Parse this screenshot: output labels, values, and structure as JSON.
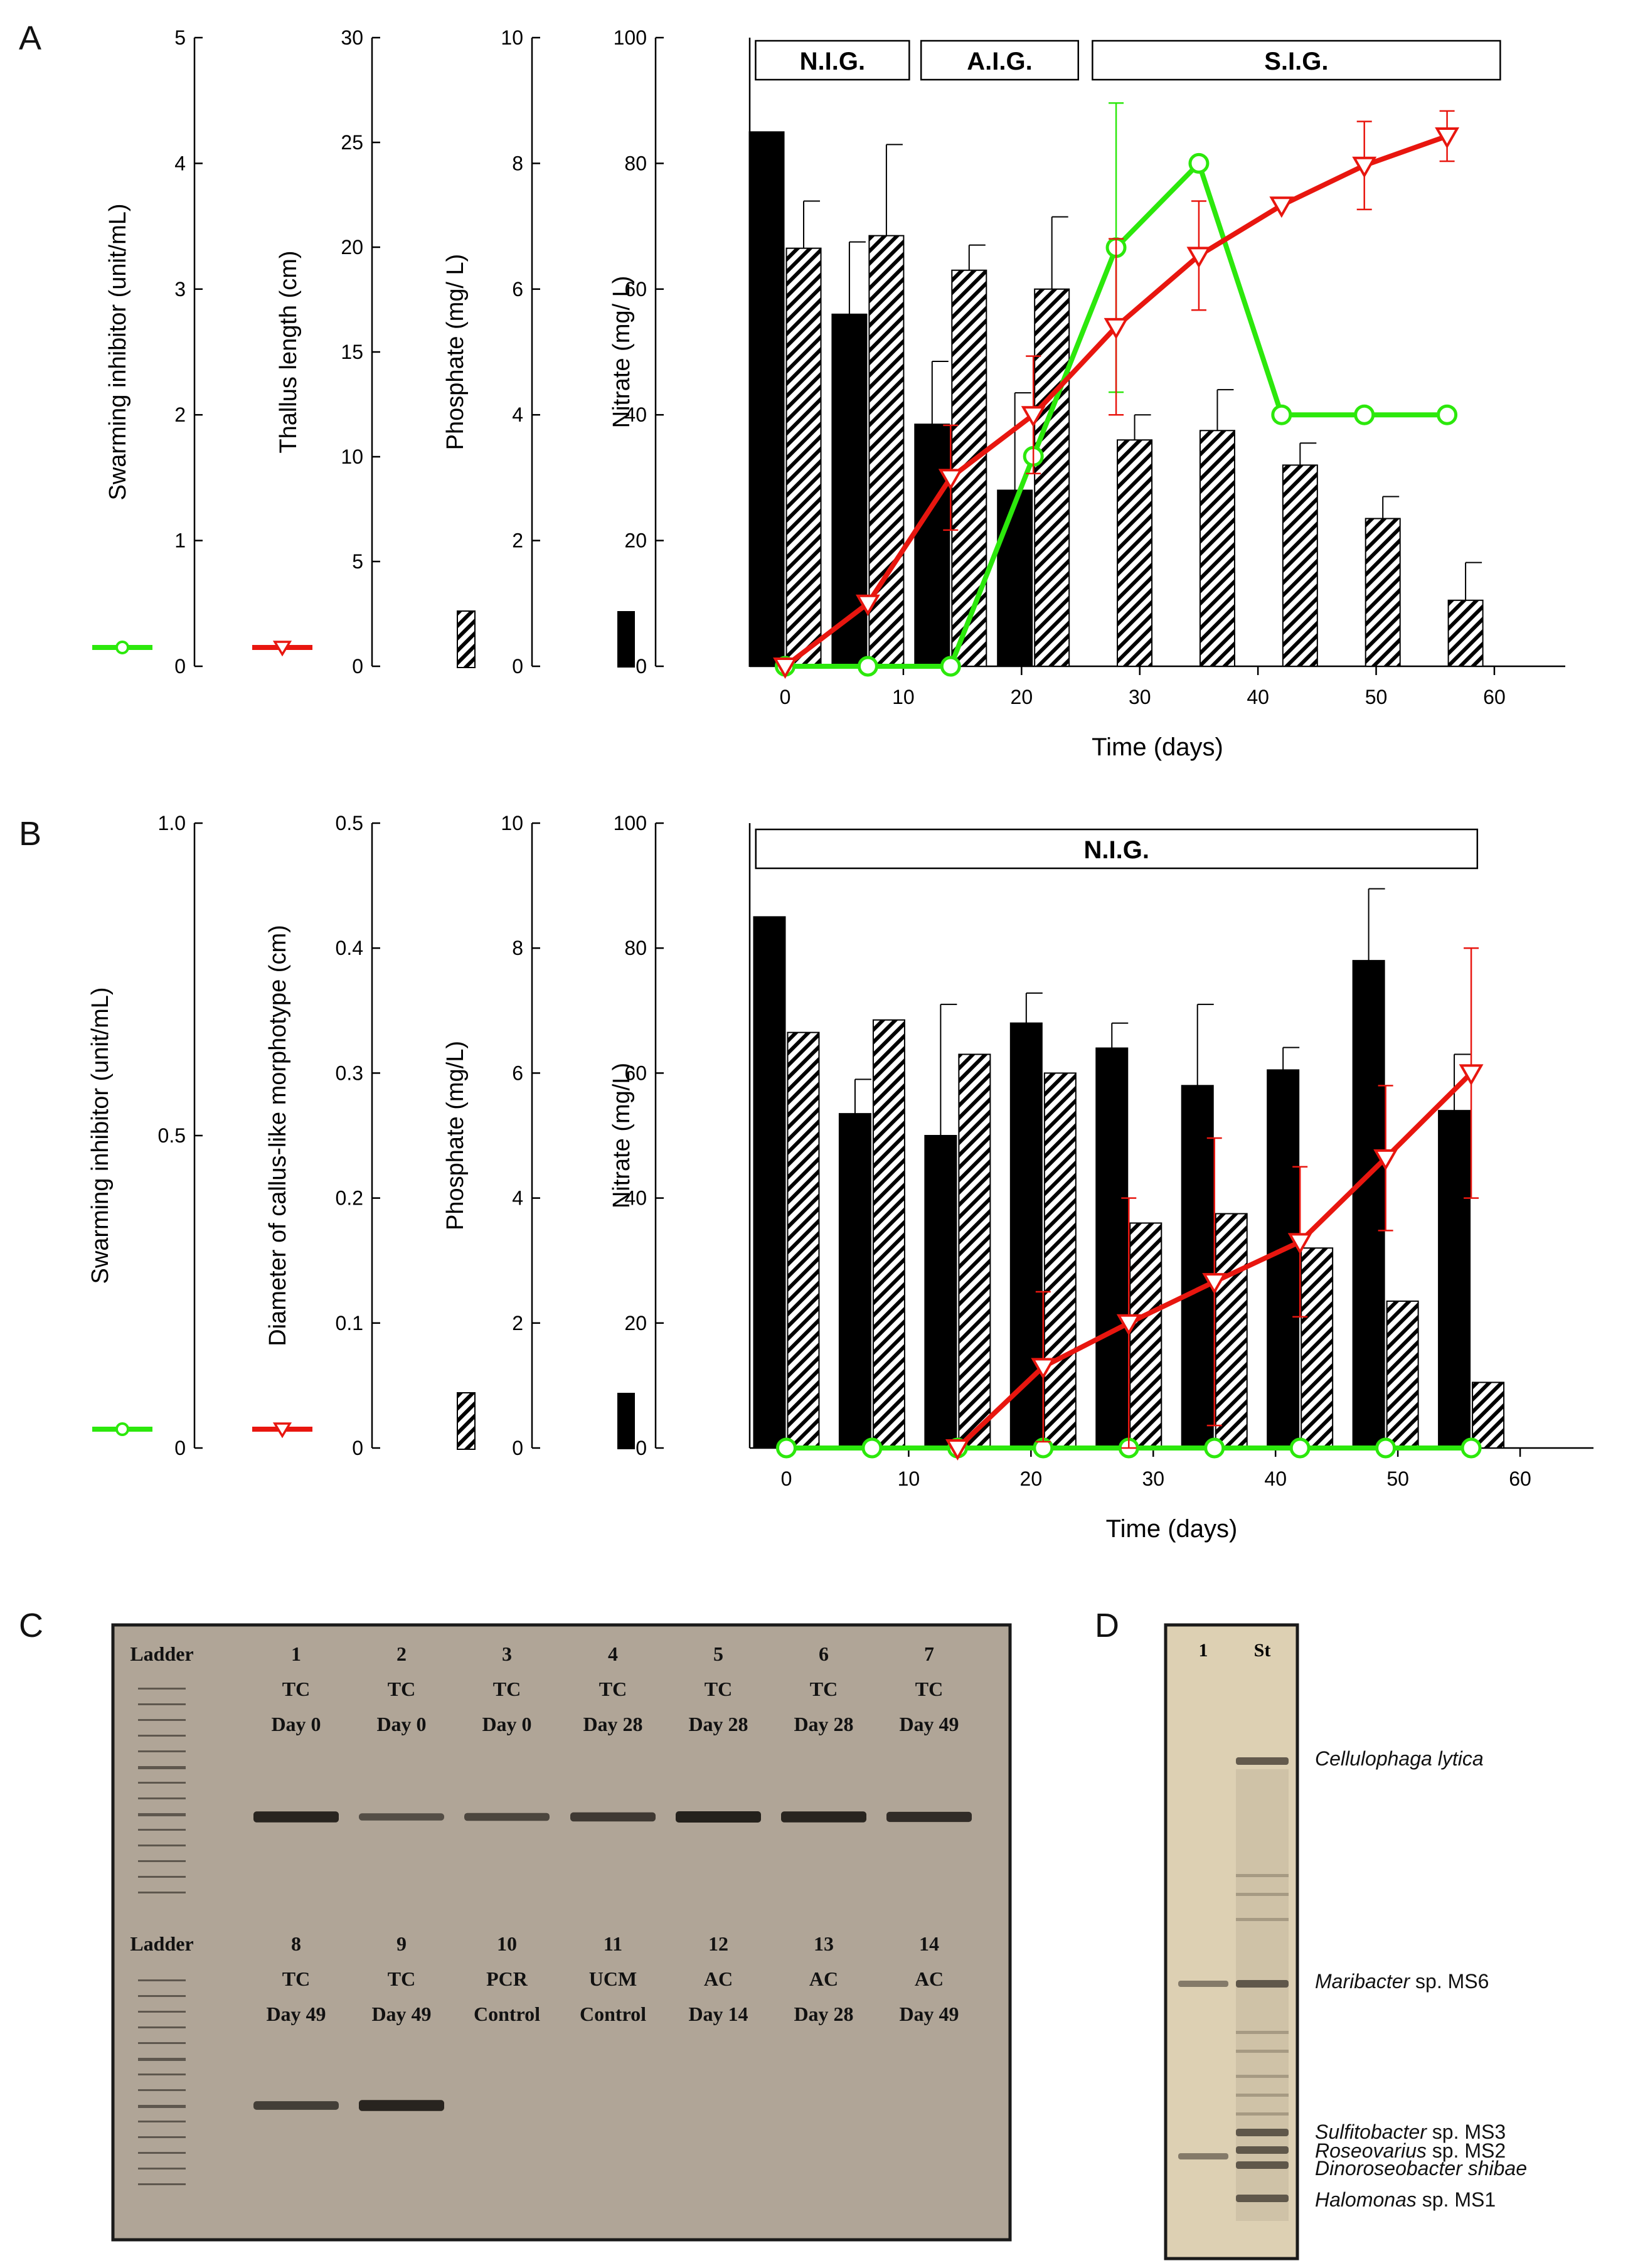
{
  "chart_data": [
    {
      "panel": "A",
      "type": "bar+line",
      "xlabel": "Time (days)",
      "xticks": [
        0,
        10,
        20,
        30,
        40,
        50,
        60
      ],
      "xlim": [
        -3,
        66
      ],
      "phases": [
        "N.I.G.",
        "A.I.G.",
        "S.I.G."
      ],
      "axes": [
        {
          "label": "Swarming inhibitor (unit/mL)",
          "ylim": [
            0,
            5
          ],
          "ticks": [
            0,
            1,
            2,
            3,
            4,
            5
          ],
          "legend": "green-line"
        },
        {
          "label": "Thallus length (cm)",
          "ylim": [
            0,
            30
          ],
          "ticks": [
            0,
            5,
            10,
            15,
            20,
            25,
            30
          ],
          "legend": "red-line"
        },
        {
          "label": "Phosphate (mg/ L)",
          "ylim": [
            0,
            10
          ],
          "ticks": [
            0,
            2,
            4,
            6,
            8,
            10
          ],
          "legend": "hatched-bar"
        },
        {
          "label": "Nitrate (mg/ L)",
          "ylim": [
            0,
            100
          ],
          "ticks": [
            0,
            20,
            40,
            60,
            80,
            100
          ],
          "legend": "black-bar"
        }
      ],
      "series": [
        {
          "name": "Nitrate",
          "axis": 3,
          "style": "black-bar",
          "x": [
            0,
            7,
            14,
            21
          ],
          "values": [
            85,
            56,
            38.5,
            28
          ],
          "err": [
            0,
            11.5,
            10,
            15.5
          ]
        },
        {
          "name": "Phosphate",
          "axis": 2,
          "style": "hatched-bar",
          "x": [
            0,
            7,
            14,
            21,
            28,
            35,
            42,
            49,
            56
          ],
          "values": [
            6.65,
            6.85,
            6.3,
            6.0,
            3.6,
            3.75,
            3.2,
            2.35,
            1.05
          ],
          "err": [
            0.75,
            1.45,
            0.4,
            1.15,
            0.4,
            0.65,
            0.35,
            0.35,
            0.6
          ]
        },
        {
          "name": "Thallus length",
          "axis": 1,
          "style": "red-triangle-line",
          "x": [
            0,
            7,
            14,
            21,
            28,
            35,
            42,
            49,
            56
          ],
          "values": [
            0,
            3,
            9,
            12,
            16.2,
            19.6,
            22,
            23.9,
            25.3
          ],
          "err": [
            0,
            0,
            2.5,
            2.8,
            4.2,
            2.6,
            0,
            2.1,
            1.2
          ]
        },
        {
          "name": "Swarming inhibitor",
          "axis": 0,
          "style": "green-circle-line",
          "x": [
            0,
            7,
            14,
            21,
            28,
            35,
            42,
            49,
            56
          ],
          "values": [
            0,
            0,
            0,
            1.67,
            3.33,
            4.0,
            2.0,
            2.0,
            2.0
          ],
          "err": [
            0,
            0,
            0,
            0,
            1.15,
            0,
            0,
            0,
            0
          ]
        }
      ]
    },
    {
      "panel": "B",
      "type": "bar+line",
      "xlabel": "Time (days)",
      "xticks": [
        0,
        10,
        20,
        30,
        40,
        50,
        60
      ],
      "xlim": [
        -3,
        66
      ],
      "phases": [
        "N.I.G."
      ],
      "axes": [
        {
          "label": "Swarming inhibitor (unit/mL)",
          "ylim": [
            0,
            1
          ],
          "ticks": [
            0,
            0.5,
            1.0
          ],
          "ticklabels": [
            "0",
            "0.5",
            "1.0"
          ],
          "legend": "green-line"
        },
        {
          "label": "Diameter of callus-like morphotype (cm)",
          "ylim": [
            0,
            0.5
          ],
          "ticks": [
            0,
            0.1,
            0.2,
            0.3,
            0.4,
            0.5
          ],
          "ticklabels": [
            "0",
            "0.1",
            "0.2",
            "0.3",
            "0.4",
            "0.5"
          ],
          "legend": "red-line"
        },
        {
          "label": "Phosphate (mg/L)",
          "ylim": [
            0,
            10
          ],
          "ticks": [
            0,
            2,
            4,
            6,
            8,
            10
          ],
          "legend": "hatched-bar"
        },
        {
          "label": "Nitrate (mg/L)",
          "ylim": [
            0,
            100
          ],
          "ticks": [
            0,
            20,
            40,
            60,
            80,
            100
          ],
          "legend": "black-bar"
        }
      ],
      "series": [
        {
          "name": "Nitrate",
          "axis": 3,
          "style": "black-bar",
          "x": [
            0,
            7,
            14,
            21,
            28,
            35,
            42,
            49,
            56
          ],
          "values": [
            85,
            53.5,
            50,
            68,
            64,
            58,
            60.5,
            78,
            54
          ],
          "err": [
            0,
            5.5,
            21,
            4.8,
            4,
            13,
            3.6,
            11.5,
            9
          ]
        },
        {
          "name": "Phosphate",
          "axis": 2,
          "style": "hatched-bar",
          "x": [
            0,
            7,
            14,
            21,
            28,
            35,
            42,
            49,
            56
          ],
          "values": [
            6.65,
            6.85,
            6.3,
            6.0,
            3.6,
            3.75,
            3.2,
            2.35,
            1.05
          ],
          "err": [
            0,
            0,
            0,
            0,
            0,
            0,
            0,
            0,
            0
          ]
        },
        {
          "name": "Callus diameter",
          "axis": 1,
          "style": "red-triangle-line",
          "x": [
            14,
            21,
            28,
            35,
            42,
            49,
            56
          ],
          "values": [
            0,
            0.065,
            0.1,
            0.133,
            0.165,
            0.232,
            0.3
          ],
          "err": [
            0,
            0.06,
            0.1,
            0.115,
            0.06,
            0.058,
            0.1
          ]
        },
        {
          "name": "Swarming inhibitor",
          "axis": 0,
          "style": "green-circle-line",
          "x": [
            0,
            7,
            14,
            21,
            28,
            35,
            42,
            49,
            56
          ],
          "values": [
            0,
            0,
            0,
            0,
            0,
            0,
            0,
            0,
            0
          ],
          "err": [
            0,
            0,
            0,
            0,
            0,
            0,
            0,
            0,
            0
          ]
        }
      ]
    }
  ],
  "panel_labels": {
    "a": "A",
    "b": "B",
    "c": "C",
    "d": "D"
  },
  "gel_c": {
    "ladder_label": "Ladder",
    "row1": [
      {
        "num": "1",
        "type": "TC",
        "day": "Day 0",
        "band": 0.95
      },
      {
        "num": "2",
        "type": "TC",
        "day": "Day 0",
        "band": 0.45
      },
      {
        "num": "3",
        "type": "TC",
        "day": "Day 0",
        "band": 0.55
      },
      {
        "num": "4",
        "type": "TC",
        "day": "Day 28",
        "band": 0.7
      },
      {
        "num": "5",
        "type": "TC",
        "day": "Day 28",
        "band": 1.0
      },
      {
        "num": "6",
        "type": "TC",
        "day": "Day 28",
        "band": 0.95
      },
      {
        "num": "7",
        "type": "TC",
        "day": "Day 49",
        "band": 0.85
      }
    ],
    "row2": [
      {
        "num": "8",
        "type": "TC",
        "day": "Day 49",
        "band": 0.65
      },
      {
        "num": "9",
        "type": "TC",
        "day": "Day 49",
        "band": 0.95
      },
      {
        "num": "10",
        "type": "PCR",
        "day": "Control",
        "band": 0
      },
      {
        "num": "11",
        "type": "UCM",
        "day": "Control",
        "band": 0
      },
      {
        "num": "12",
        "type": "AC",
        "day": "Day 14",
        "band": 0
      },
      {
        "num": "13",
        "type": "AC",
        "day": "Day 28",
        "band": 0
      },
      {
        "num": "14",
        "type": "AC",
        "day": "Day 49",
        "band": 0
      }
    ]
  },
  "gel_d": {
    "lanes": [
      "1",
      "St"
    ],
    "bands": [
      {
        "name": "Cellulophaga lytica",
        "suffix": ""
      },
      {
        "name": "Maribacter",
        "suffix": " sp. MS6"
      },
      {
        "name": "Sulfitobacter",
        "suffix": " sp. MS3"
      },
      {
        "name": "Roseovarius",
        "suffix": " sp. MS2"
      },
      {
        "name": "Dinoroseobacter shibae",
        "suffix": ""
      },
      {
        "name": "Halomonas",
        "suffix": " sp. MS1"
      }
    ]
  },
  "colors": {
    "red": "#e8160f",
    "green": "#2ce80c",
    "black": "#000000",
    "gel_c_bg": "#b0a597",
    "gel_d_bg": "#ddd0b3"
  }
}
